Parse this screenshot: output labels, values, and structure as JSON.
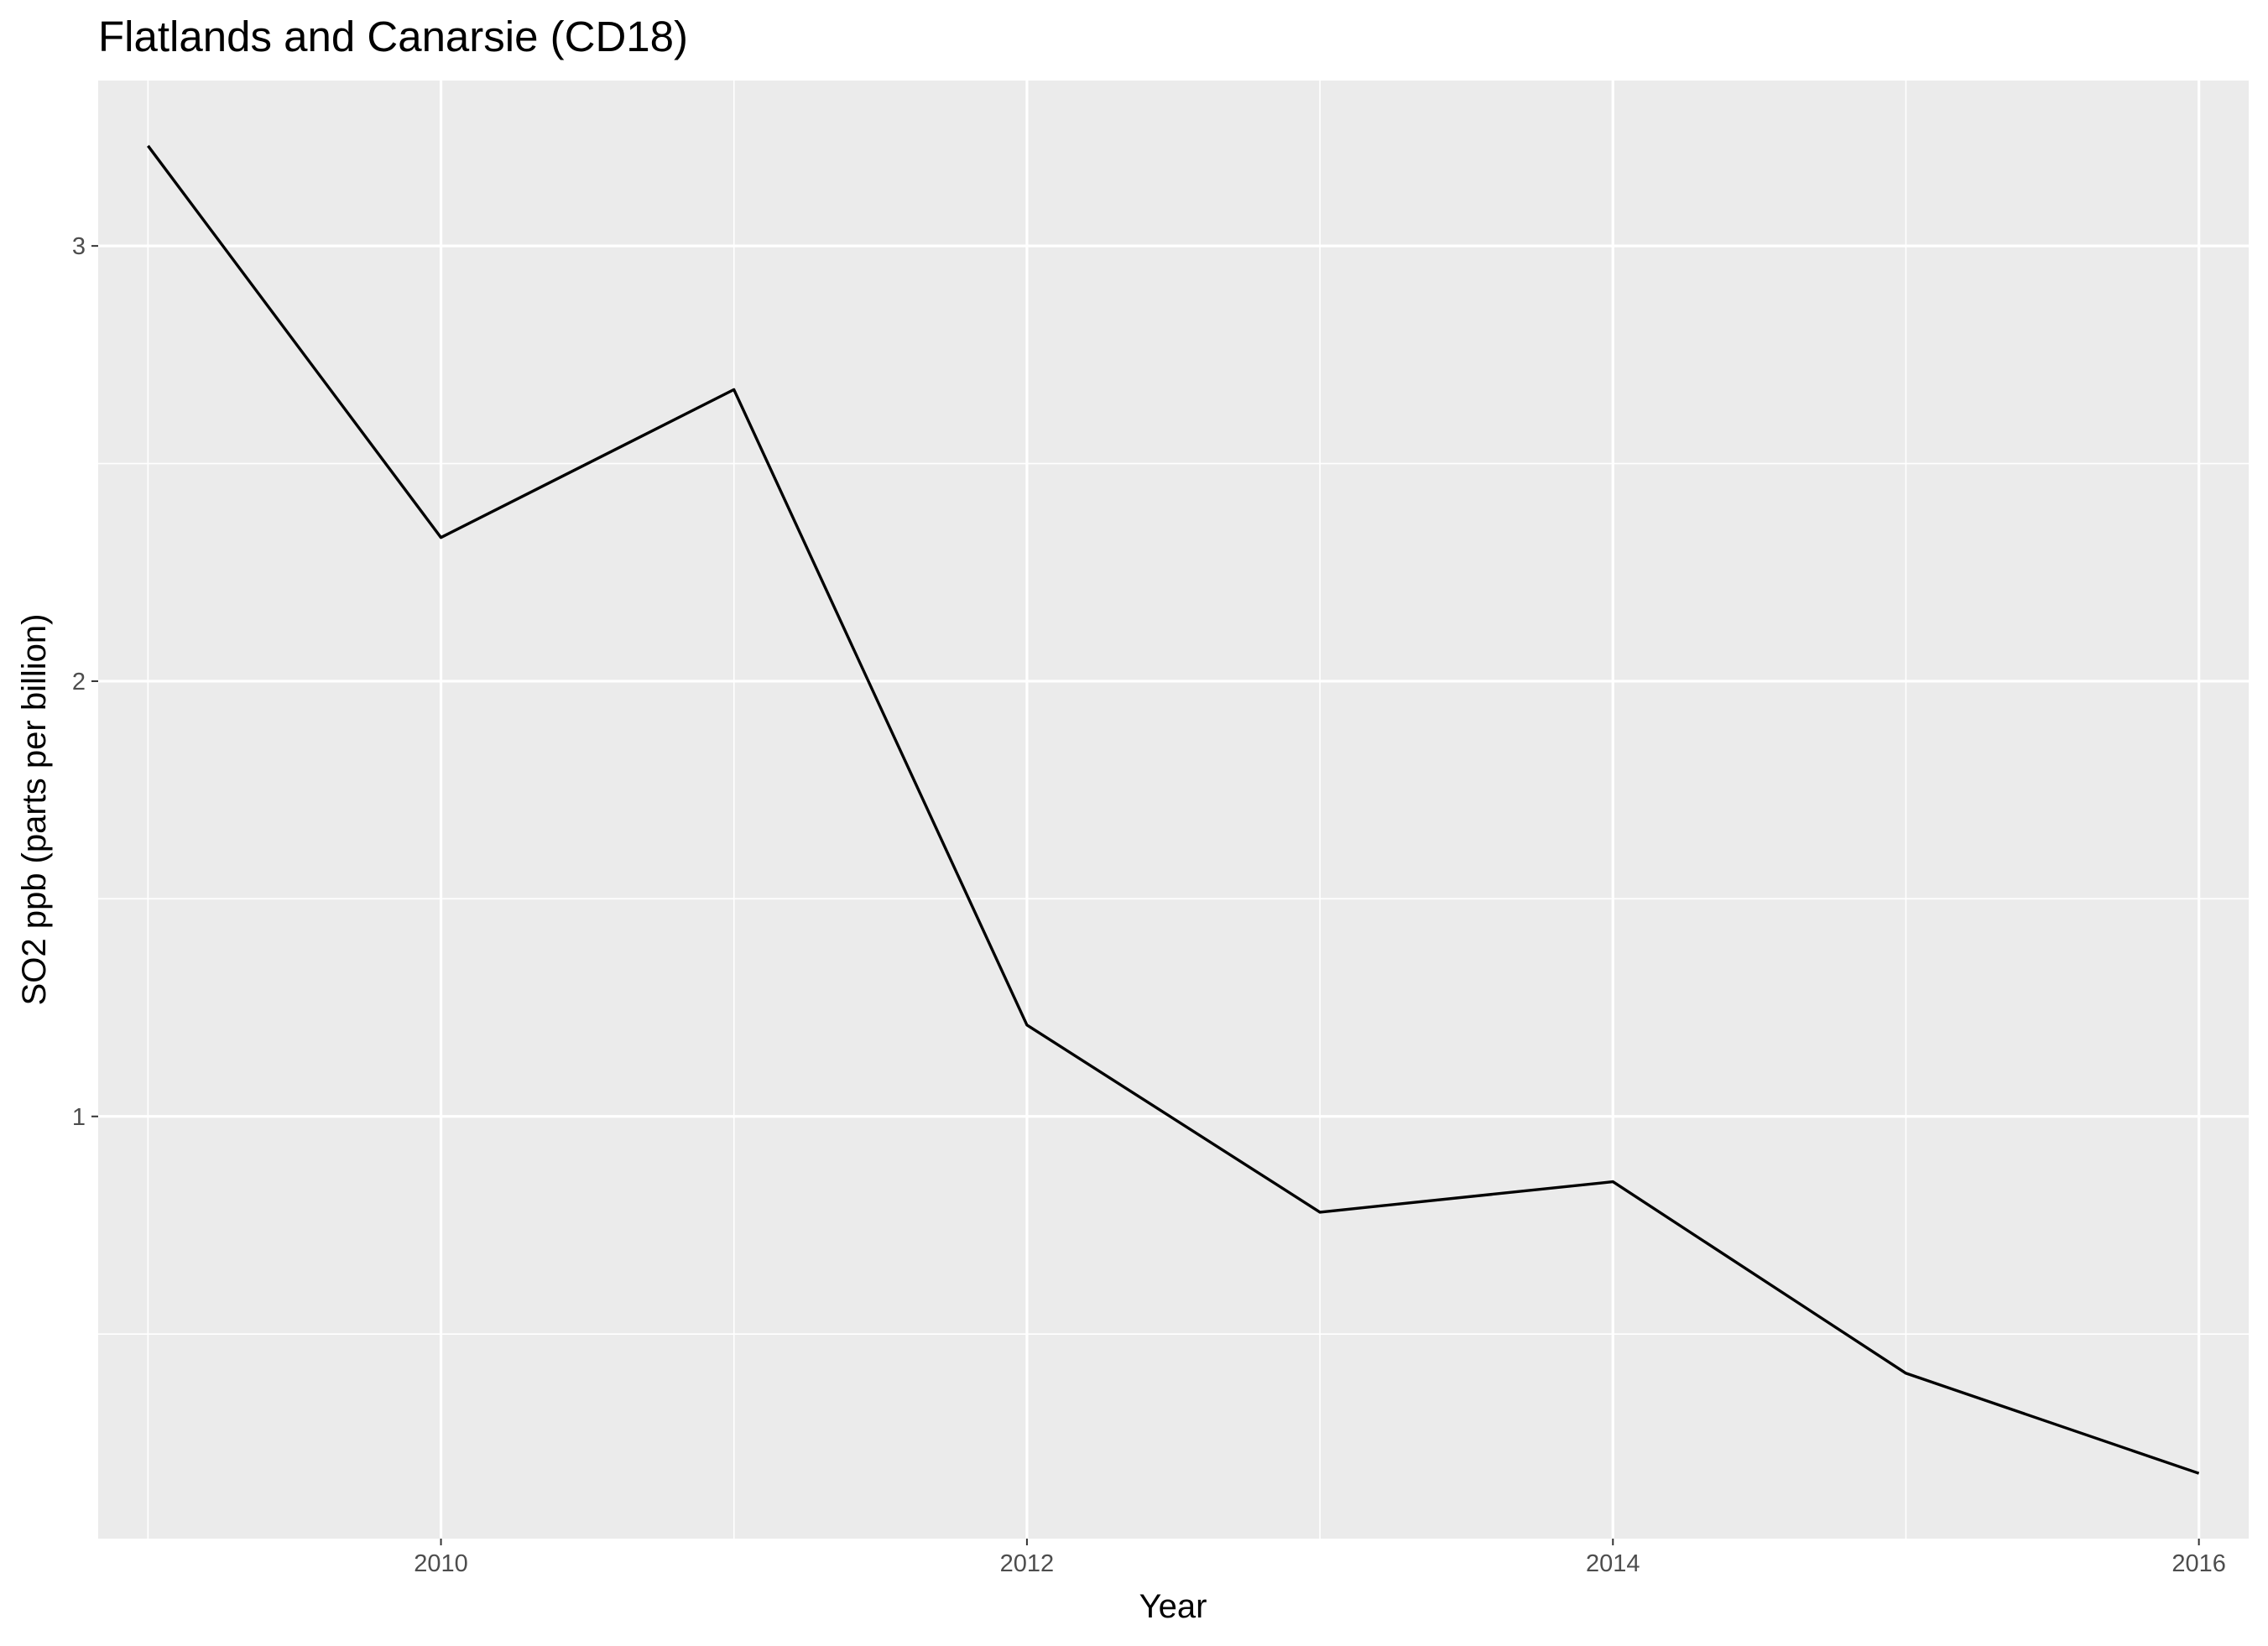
{
  "chart_data": {
    "type": "line",
    "title": "Flatlands and Canarsie (CD18)",
    "xlabel": "Year",
    "ylabel": "SO2 ppb (parts per billion)",
    "x": [
      2009,
      2010,
      2011,
      2012,
      2013,
      2014,
      2015,
      2016
    ],
    "series": [
      {
        "values": [
          3.23,
          2.33,
          2.67,
          1.21,
          0.78,
          0.85,
          0.41,
          0.18
        ]
      }
    ],
    "xlim": [
      2008.83,
      2016.17
    ],
    "ylim": [
      0.03,
      3.38
    ],
    "x_ticks": [
      2010,
      2012,
      2014,
      2016
    ],
    "x_tick_labels": [
      "2010",
      "2012",
      "2014",
      "2016"
    ],
    "y_ticks": [
      1,
      2,
      3
    ],
    "y_tick_labels": [
      "1",
      "2",
      "3"
    ],
    "grid": true,
    "legend": "none",
    "colors": {
      "panel_background": "#ebebeb",
      "grid_line": "#ffffff",
      "series_line": "#000000",
      "tick_label": "#4d4d4d",
      "text": "#000000"
    }
  }
}
